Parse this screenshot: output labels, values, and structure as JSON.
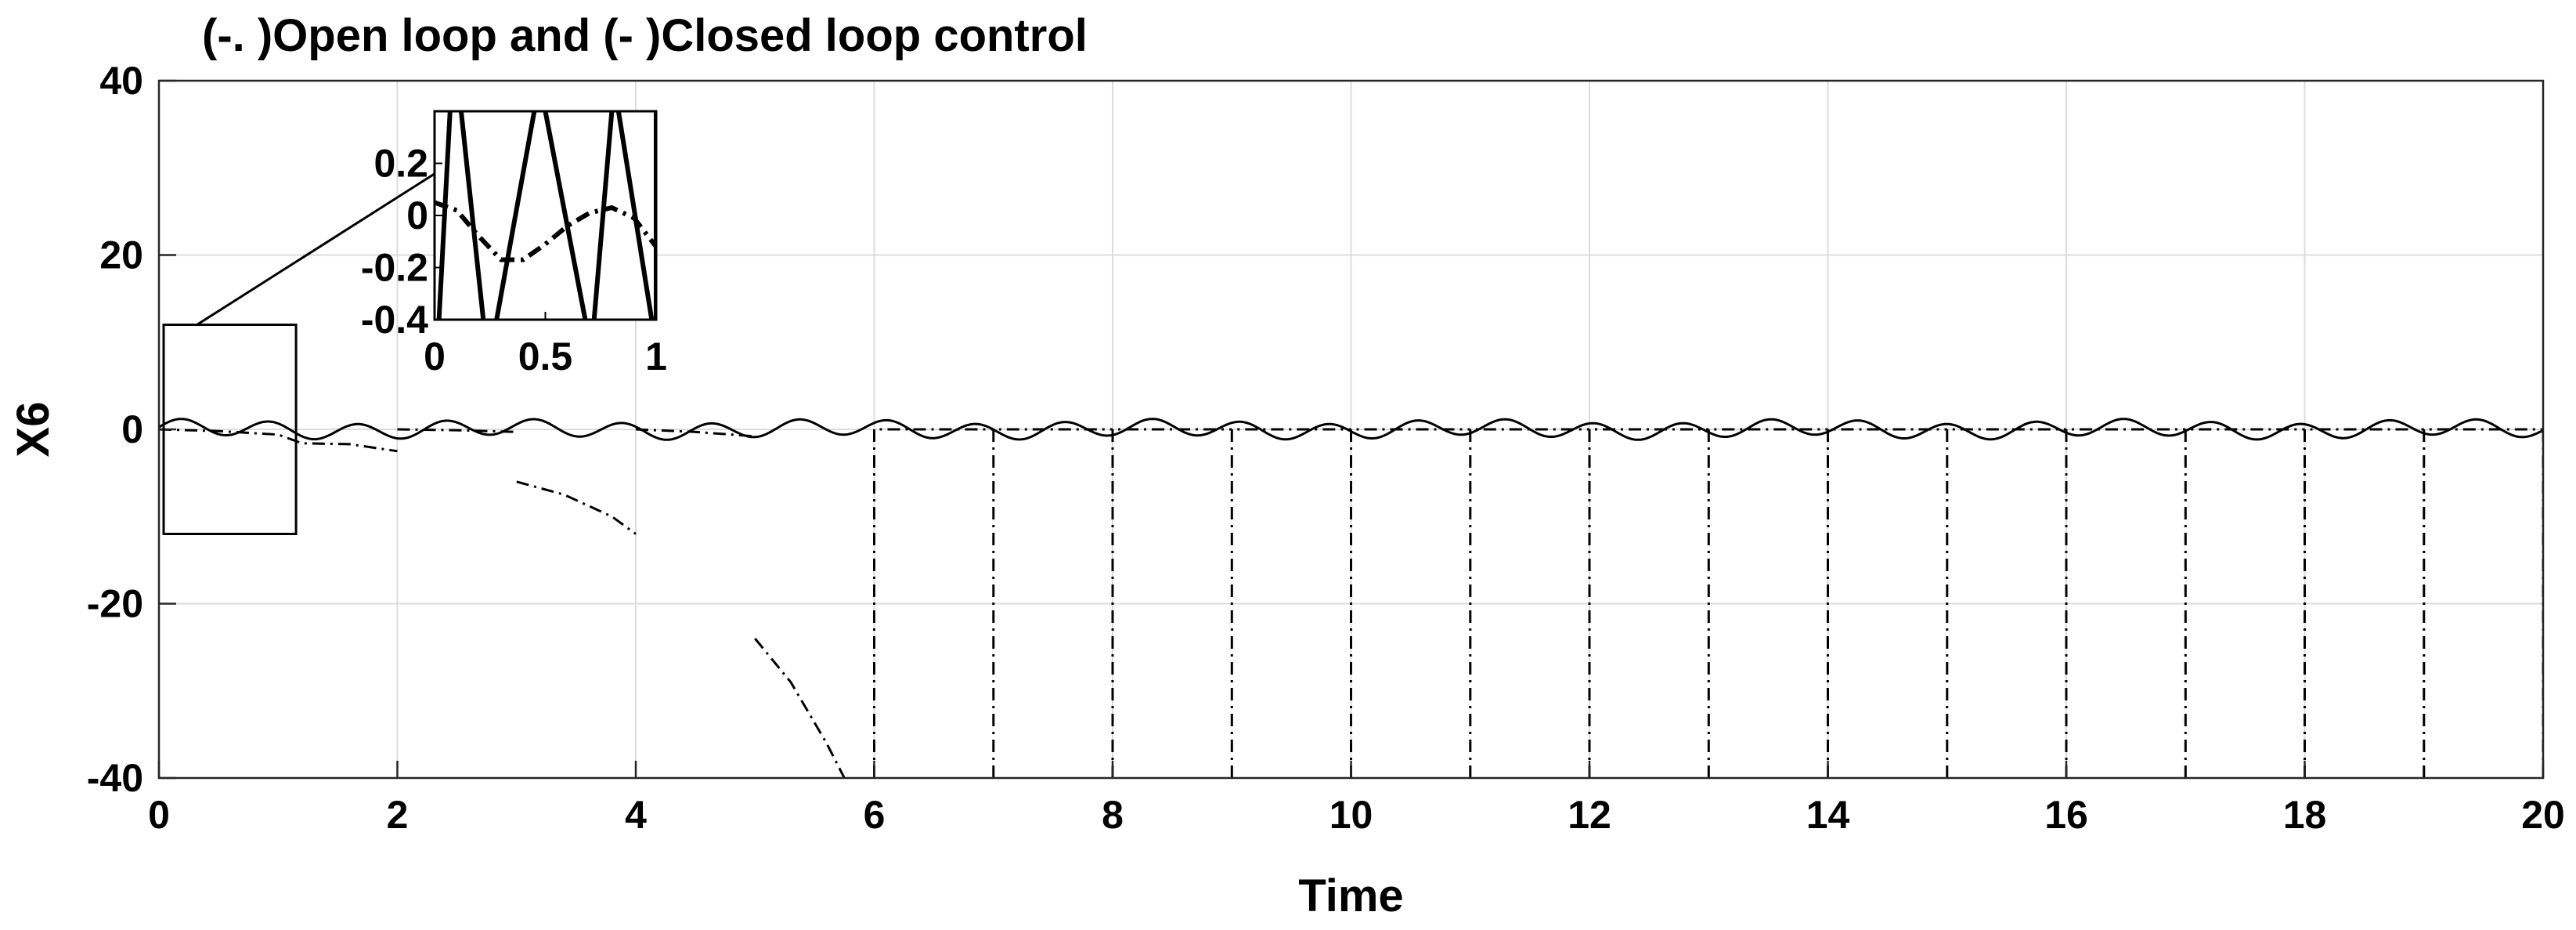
{
  "chart_data": {
    "type": "line",
    "title": "(-. )Open loop and (- )Closed loop control",
    "xlabel": "Time",
    "ylabel": "X6",
    "xlim": [
      0,
      20
    ],
    "ylim": [
      -40,
      40
    ],
    "xticks": [
      0,
      2,
      4,
      6,
      8,
      10,
      12,
      14,
      16,
      18,
      20
    ],
    "yticks": [
      -40,
      -20,
      0,
      20,
      40
    ],
    "grid": true,
    "series": [
      {
        "style": "dash-dot",
        "color": "#000000",
        "segments": [
          [
            [
              0,
              0
            ],
            [
              0.5,
              -0.2
            ],
            [
              1,
              -0.6
            ],
            [
              1.2,
              -1.6
            ],
            [
              1.6,
              -1.7
            ],
            [
              2,
              -2.5
            ]
          ],
          [
            [
              2,
              0
            ],
            [
              2.5,
              -0.1
            ],
            [
              3,
              -0.3
            ]
          ],
          [
            [
              3,
              -6
            ],
            [
              3.4,
              -7.5
            ],
            [
              3.8,
              -10
            ],
            [
              4,
              -12
            ]
          ],
          [
            [
              4,
              0
            ],
            [
              4.5,
              -0.3
            ],
            [
              5,
              -0.8
            ]
          ],
          [
            [
              5,
              -24
            ],
            [
              5.3,
              -29
            ],
            [
              5.6,
              -36
            ],
            [
              5.75,
              -40
            ]
          ],
          [
            [
              6,
              -40
            ],
            [
              6,
              0
            ],
            [
              7,
              0
            ]
          ],
          [
            [
              7,
              -40
            ],
            [
              7,
              0
            ],
            [
              8,
              0
            ]
          ],
          [
            [
              8,
              -40
            ],
            [
              8,
              0
            ],
            [
              9,
              0
            ]
          ],
          [
            [
              9,
              -40
            ],
            [
              9,
              0
            ],
            [
              10,
              0
            ]
          ],
          [
            [
              10,
              -40
            ],
            [
              10,
              0
            ],
            [
              11,
              0
            ]
          ],
          [
            [
              11,
              -40
            ],
            [
              11,
              0
            ],
            [
              12,
              0
            ]
          ],
          [
            [
              12,
              -40
            ],
            [
              12,
              0
            ],
            [
              13,
              0
            ]
          ],
          [
            [
              13,
              -40
            ],
            [
              13,
              0
            ],
            [
              14,
              0
            ]
          ],
          [
            [
              14,
              -40
            ],
            [
              14,
              0
            ],
            [
              15,
              0
            ]
          ],
          [
            [
              15,
              -40
            ],
            [
              15,
              0
            ],
            [
              16,
              0
            ]
          ],
          [
            [
              16,
              -40
            ],
            [
              16,
              0
            ],
            [
              17,
              0
            ]
          ],
          [
            [
              17,
              -40
            ],
            [
              17,
              0
            ],
            [
              18,
              0
            ]
          ],
          [
            [
              18,
              -40
            ],
            [
              18,
              0
            ],
            [
              19,
              0
            ]
          ],
          [
            [
              19,
              -40
            ],
            [
              19,
              0
            ],
            [
              20,
              0
            ]
          ],
          [
            [
              20,
              -40
            ],
            [
              20,
              0
            ]
          ]
        ]
      },
      {
        "style": "solid",
        "color": "#000000",
        "amplitude": 0.9,
        "frequency_hz": 1.35,
        "x_start": 0,
        "x_end": 20
      }
    ],
    "inset": {
      "xlim": [
        0,
        1
      ],
      "ylim": [
        -0.4,
        0.4
      ],
      "xticks": [
        0,
        0.5,
        1
      ],
      "xtick_labels": [
        "0",
        "0.5",
        "1"
      ],
      "yticks": [
        -0.4,
        -0.2,
        0,
        0.2
      ],
      "ytick_labels": [
        "-0.4",
        "-0.2",
        "0",
        "0.2"
      ],
      "zoom_box": {
        "xlim": [
          0,
          1.15
        ],
        "ylim": [
          -12,
          12
        ]
      },
      "dashdot_curve": [
        [
          0,
          0.05
        ],
        [
          0.1,
          0.02
        ],
        [
          0.2,
          -0.08
        ],
        [
          0.3,
          -0.17
        ],
        [
          0.4,
          -0.17
        ],
        [
          0.5,
          -0.11
        ],
        [
          0.6,
          -0.04
        ],
        [
          0.7,
          0.01
        ],
        [
          0.8,
          0.03
        ],
        [
          0.9,
          -0.01
        ],
        [
          1,
          -0.12
        ]
      ],
      "solid_lines": [
        [
          [
            0.02,
            -0.4
          ],
          [
            0.07,
            0.4
          ]
        ],
        [
          [
            0.12,
            0.4
          ],
          [
            0.22,
            -0.4
          ]
        ],
        [
          [
            0.28,
            -0.4
          ],
          [
            0.45,
            0.4
          ]
        ],
        [
          [
            0.5,
            0.4
          ],
          [
            0.68,
            -0.4
          ]
        ],
        [
          [
            0.72,
            -0.4
          ],
          [
            0.8,
            0.4
          ]
        ],
        [
          [
            0.83,
            0.4
          ],
          [
            0.98,
            -0.4
          ]
        ],
        [
          [
            1.0,
            -0.4
          ],
          [
            1.0,
            0.4
          ]
        ]
      ]
    }
  }
}
